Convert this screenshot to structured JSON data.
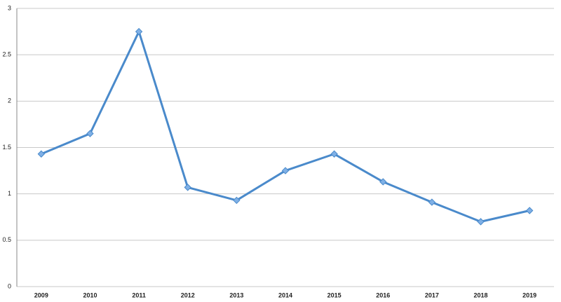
{
  "chart_data": {
    "type": "line",
    "categories": [
      "2009",
      "2010",
      "2011",
      "2012",
      "2013",
      "2014",
      "2015",
      "2016",
      "2017",
      "2018",
      "2019"
    ],
    "series": [
      {
        "color": "#4a8acb",
        "values": [
          1.43,
          1.65,
          2.75,
          1.07,
          0.93,
          1.25,
          1.43,
          1.13,
          0.91,
          0.7,
          0.82
        ]
      }
    ],
    "ylim": [
      0,
      3
    ],
    "yticks": [
      0,
      0.5,
      1,
      1.5,
      2,
      2.5,
      3
    ],
    "grid": true
  }
}
